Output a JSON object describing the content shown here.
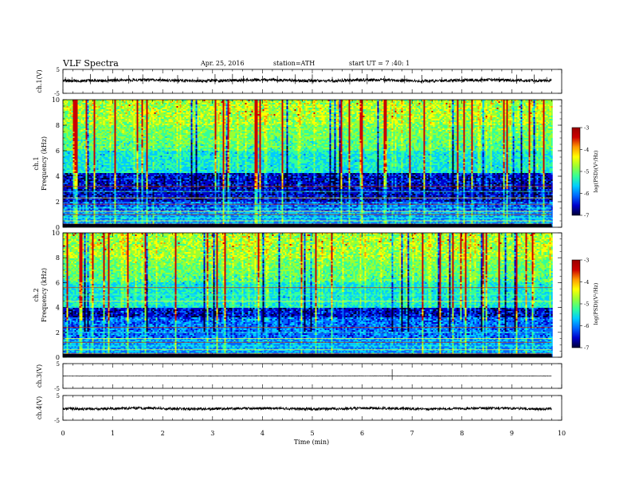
{
  "header": {
    "title": "VLF Spectra",
    "date": "Apr. 25, 2016",
    "station": "station=ATH",
    "start": "start  UT =  7 :40: 1"
  },
  "colors": {
    "background": "#ffffff",
    "axis": "#000000",
    "trace": "#000000",
    "colormap": [
      "#000033",
      "#0000cc",
      "#0066ff",
      "#00ccff",
      "#33ff99",
      "#99ff33",
      "#ffff00",
      "#ff9900",
      "#cc0000",
      "#990000"
    ]
  },
  "chart_data": [
    {
      "type": "line",
      "name": "ch1-waveform",
      "ylabel": "ch.1(V)",
      "ylim": [
        -5,
        5
      ],
      "yticks": [
        "5",
        "-5"
      ],
      "xlim": [
        0,
        10
      ],
      "data_extent_min": 9.8,
      "baseline": 0.4,
      "noise_amplitude": 0.6,
      "spikes": [
        0.05,
        0.18,
        0.55,
        0.9,
        1.05,
        1.32,
        1.6,
        1.95,
        2.3,
        2.7,
        3.05,
        3.4,
        3.62,
        4.0,
        4.3,
        4.66,
        5.0,
        5.4,
        5.75,
        6.1,
        6.45,
        6.85,
        7.2,
        7.6,
        8.0,
        8.4,
        8.75,
        9.1,
        9.45,
        9.7
      ]
    },
    {
      "type": "heatmap",
      "name": "ch1-spectrogram",
      "ylabel": [
        "ch.1",
        "Frequency  (kHz)"
      ],
      "ylim": [
        0,
        10
      ],
      "yticks": [
        "0",
        "2",
        "4",
        "6",
        "8",
        "10"
      ],
      "xlim": [
        0,
        10
      ],
      "data_extent_min": 9.8,
      "colorbar": {
        "label": "log(PSD)(V²/Hz)",
        "range": [
          -7,
          -3
        ],
        "ticks": [
          "-3",
          "-4",
          "-5",
          "-6",
          "-7"
        ]
      },
      "dark_band_khz": [
        2.0,
        4.3
      ],
      "mid_band_khz": [
        1.2,
        2.0
      ],
      "hum_lines_khz": [
        0.25,
        0.5,
        0.75,
        1.0,
        1.25,
        1.5,
        1.8,
        2.3,
        2.8,
        3.2
      ]
    },
    {
      "type": "heatmap",
      "name": "ch2-spectrogram",
      "ylabel": [
        "ch.2",
        "Frequency  (kHz)"
      ],
      "ylim": [
        0,
        10
      ],
      "yticks": [
        "0",
        "2",
        "4",
        "6",
        "8",
        "10"
      ],
      "xlim": [
        0,
        10
      ],
      "data_extent_min": 9.8,
      "colorbar": {
        "label": "log(PSD)(V²/Hz)",
        "range": [
          -7,
          -3
        ],
        "ticks": [
          "-3",
          "-4",
          "-5",
          "-6",
          "-7"
        ]
      },
      "dark_band_khz": [
        3.2,
        4.0
      ],
      "mid_band_khz": [
        1.5,
        3.2
      ],
      "hum_lines_khz": [
        0.3,
        0.6,
        0.9,
        1.2,
        1.5,
        2.0,
        2.4,
        4.5,
        5.0,
        5.6
      ]
    },
    {
      "type": "line",
      "name": "ch3-waveform",
      "ylabel": "ch.3(V)",
      "ylim": [
        -5,
        5
      ],
      "yticks": [
        "5",
        "-5"
      ],
      "xlim": [
        0,
        10
      ],
      "data_extent_min": 9.8,
      "baseline": 0,
      "noise_amplitude": 0.1,
      "spikes": [
        6.6
      ]
    },
    {
      "type": "line",
      "name": "ch4-waveform",
      "ylabel": "ch.4(V)",
      "ylim": [
        -5,
        5
      ],
      "yticks": [
        "5",
        "-5"
      ],
      "xlim": [
        0,
        10
      ],
      "data_extent_min": 9.8,
      "baseline": -0.3,
      "noise_amplitude": 0.5,
      "spikes": []
    }
  ],
  "xaxis": {
    "label": "Time  (min)",
    "range": [
      0,
      10
    ],
    "ticks": [
      "0",
      "1",
      "2",
      "3",
      "4",
      "5",
      "6",
      "7",
      "8",
      "9",
      "10"
    ]
  }
}
